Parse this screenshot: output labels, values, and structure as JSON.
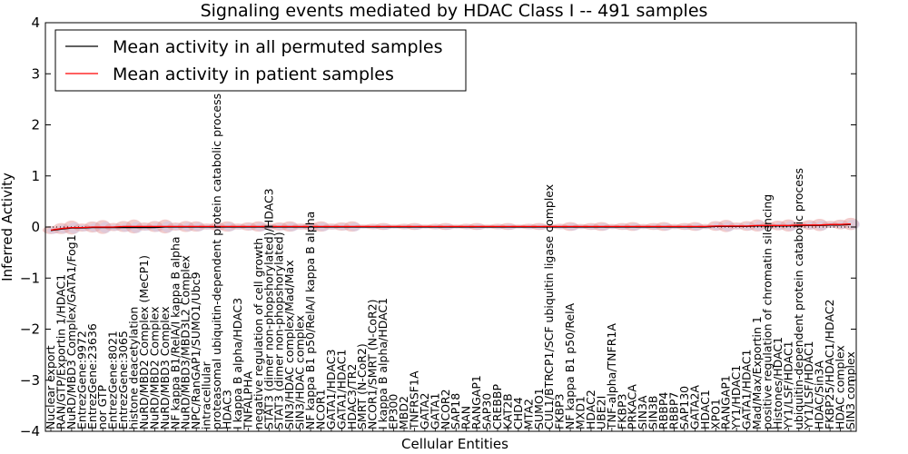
{
  "chart_data": {
    "type": "line",
    "title": "Signaling events mediated by HDAC Class I -- 491 samples",
    "xlabel": "Cellular Entities",
    "ylabel": "Inferred Activity",
    "ylim": [
      -4,
      4
    ],
    "yticks": [
      -4,
      -3,
      -2,
      -1,
      0,
      1,
      2,
      3,
      4
    ],
    "ytick_labels": [
      "−4",
      "−3",
      "−2",
      "−1",
      "0",
      "1",
      "2",
      "3",
      "4"
    ],
    "grid": false,
    "legend_position": "top-left",
    "categories": [
      "Nuclear export",
      "RAN/GTP/Exportin 1/HDAC1",
      "NuRD/MBD3 Complex/GATA1/Fog1",
      "EntrezGene:9972",
      "EntrezGene:23636",
      "nor GTP",
      "EntrezGene:8021",
      "EntrezGene:3065",
      "histone deacetylation",
      "NuRD/MBD2 Complex (MeCP1)",
      "NuRD/MBD2 Complex",
      "NuRD/MBD3 Complex",
      "NF kappa B1/RelA/I kappa B alpha",
      "NuRD/MBD3/MBD3L2 Complex",
      "NPC/RanGAP1/SUMO1/Ubc9",
      "intracellular",
      "proteasomal ubiquitin-dependent protein catabolic process",
      "HDAC3",
      "I kappa B alpha/HDAC3",
      "TNFALPHA",
      "negative regulation of cell growth",
      "STAT3 (dimer non-phopshorylated)/HDAC3",
      "STAT3 (dimer non-phopshorylated)",
      "SIN3/HDAC complex/Mad/Max",
      "SIN3/HDAC complex",
      "NF kappa B1 p50/RelA/I kappa B alpha",
      "NCOR1",
      "GATA1/HDAC3",
      "GATA1/HDAC1",
      "HDAC3/TR2",
      "SMRT (N-CoR2)",
      "NCOR1/SMRT (N-CoR2)",
      "I kappa B alpha/HDAC1",
      "EP300",
      "MBD2",
      "TNFRSF1A",
      "GATA2",
      "GATA1",
      "NCOR2",
      "SAP18",
      "RAN",
      "RANGAP1",
      "SAP30",
      "CREBBP",
      "KAT2B",
      "CHD4",
      "MTA2",
      "SUMO1",
      "CUL1/BTRCP1/SCF ubiquitin ligase complex",
      "FKBP3",
      "NF kappa B1 p50/RelA",
      "MXD1",
      "HDAC2",
      "UBE2I",
      "TNF-alpha/TNFR1A",
      "FKBP3",
      "PRKACA",
      "SIN3A",
      "SIN3B",
      "RBBP4",
      "RBBP7",
      "SAP130",
      "GATA2A",
      "HDAC1",
      "XPO1",
      "RANGAP1",
      "YY1/HDAC1",
      "GATA1/HDAC1",
      "Mad/Max/Exportin 1",
      "positive regulation of chromatin silencing",
      "Histones/HDAC1",
      "YY1/LSF/HDAC1",
      "ubiquitin-dependent protein catabolic process",
      "YY1/LSF/HDAC1",
      "HDAC/Sin3A",
      "FKBP25/HDAC1/HDAC2",
      "HDAC complex",
      "SIN3 complex"
    ],
    "series": [
      {
        "name": "Mean activity in all permuted samples",
        "color": "#000000",
        "values": [
          -0.07,
          -0.04,
          -0.02,
          -0.02,
          -0.01,
          -0.01,
          -0.01,
          -0.01,
          -0.01,
          -0.01,
          -0.01,
          0.0,
          0.0,
          0.0,
          0.0,
          0.0,
          0.0,
          0.0,
          0.0,
          0.0,
          0.0,
          0.0,
          0.0,
          0.0,
          0.0,
          0.0,
          0.0,
          0.0,
          0.0,
          0.0,
          0.0,
          0.0,
          0.0,
          0.0,
          0.0,
          0.0,
          0.0,
          0.0,
          0.0,
          0.0,
          0.0,
          0.0,
          0.0,
          0.0,
          0.0,
          0.0,
          0.0,
          0.0,
          0.0,
          0.0,
          0.0,
          0.0,
          0.0,
          0.0,
          0.0,
          0.0,
          0.0,
          0.0,
          0.0,
          0.0,
          0.0,
          0.0,
          0.0,
          0.0,
          0.01,
          0.01,
          0.01,
          0.01,
          0.02,
          0.02,
          0.02,
          0.02,
          0.03,
          0.03,
          0.03,
          0.04,
          0.04,
          0.05
        ]
      },
      {
        "name": "Mean activity in patient samples",
        "color": "#ff0000",
        "values": [
          -0.06,
          -0.03,
          -0.01,
          -0.01,
          0.0,
          0.0,
          0.0,
          0.01,
          0.01,
          0.01,
          0.01,
          0.01,
          0.01,
          0.01,
          0.01,
          0.01,
          0.01,
          0.01,
          0.01,
          0.01,
          0.01,
          0.01,
          0.01,
          0.01,
          0.01,
          0.01,
          0.01,
          0.01,
          0.01,
          0.01,
          0.01,
          0.01,
          0.01,
          0.01,
          0.01,
          0.01,
          0.01,
          0.01,
          0.01,
          0.01,
          0.01,
          0.01,
          0.01,
          0.01,
          0.01,
          0.01,
          0.01,
          0.01,
          0.01,
          0.01,
          0.01,
          0.01,
          0.01,
          0.01,
          0.01,
          0.01,
          0.01,
          0.01,
          0.01,
          0.01,
          0.01,
          0.01,
          0.01,
          0.01,
          0.02,
          0.02,
          0.02,
          0.02,
          0.03,
          0.03,
          0.03,
          0.03,
          0.04,
          0.04,
          0.04,
          0.05,
          0.05,
          0.06
        ]
      }
    ],
    "reference_line": {
      "y": 0,
      "style": "dotted"
    }
  }
}
